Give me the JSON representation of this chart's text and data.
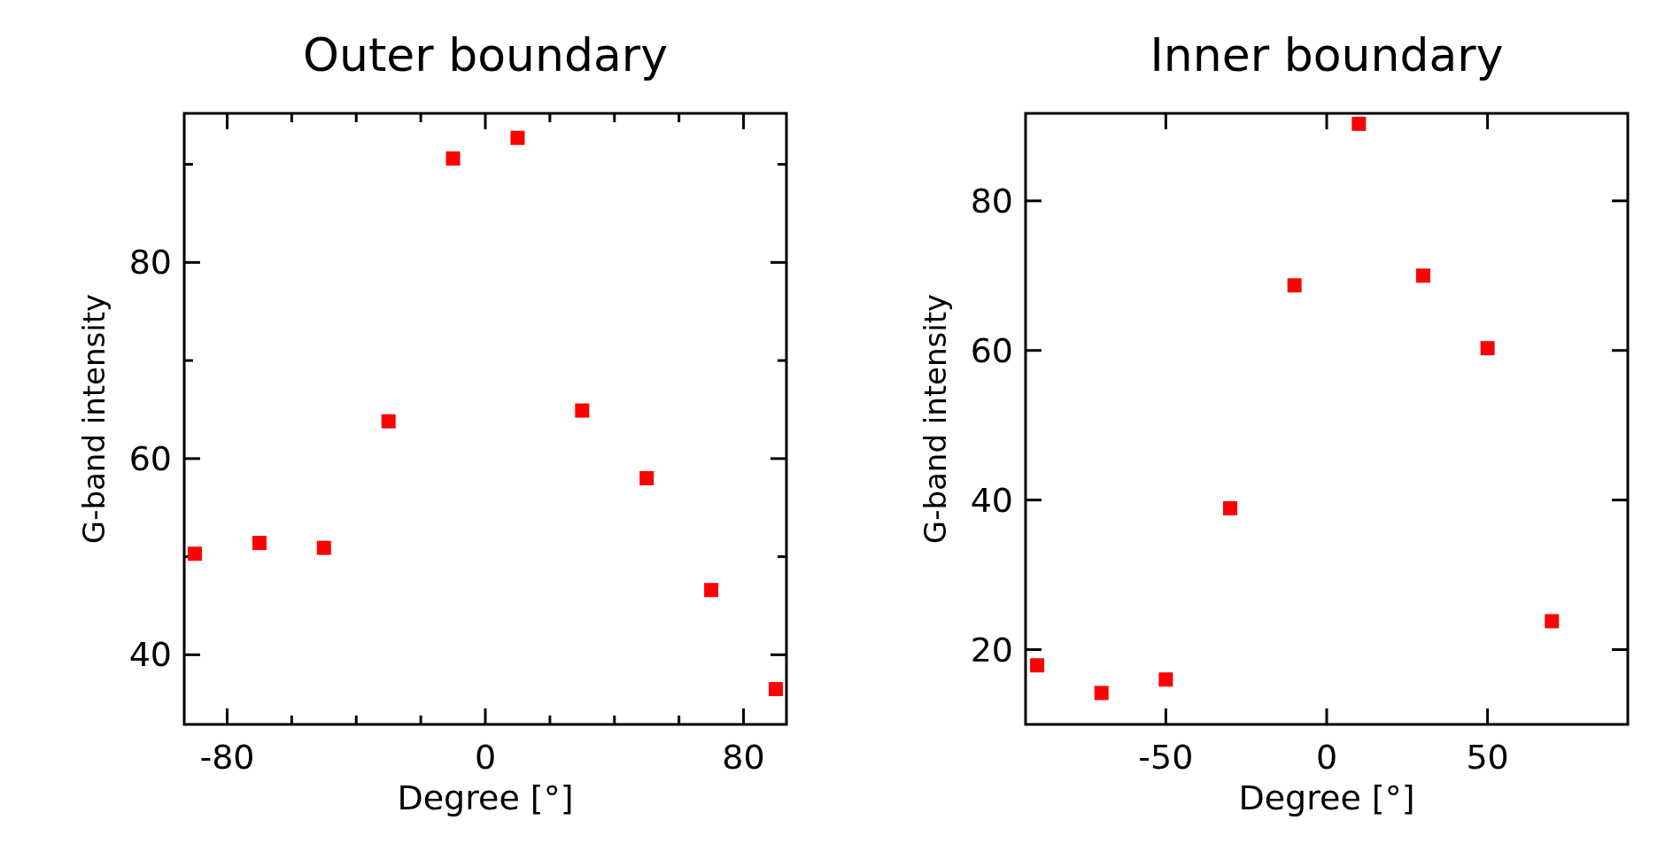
{
  "chart_data": [
    {
      "type": "scatter",
      "title": "Outer boundary",
      "xlabel": "Degree [°]",
      "ylabel": "G-band intensity",
      "marker": "square",
      "xlim": [
        -93.3,
        93.3
      ],
      "ylim": [
        32.9,
        95.2
      ],
      "xticks": [
        -80,
        {
          "value": -60,
          "label": null
        },
        {
          "value": -40,
          "label": null
        },
        {
          "value": -20,
          "label": null
        },
        0,
        {
          "value": 20,
          "label": null
        },
        {
          "value": 40,
          "label": null
        },
        {
          "value": 60,
          "label": null
        },
        80
      ],
      "yticks": [
        40,
        {
          "value": 50,
          "label": null
        },
        60,
        {
          "value": 70,
          "label": null
        },
        80,
        {
          "value": 90,
          "label": null
        }
      ],
      "series": [
        {
          "color": "#ff0000",
          "x": [
            -90,
            -70,
            -50,
            -30,
            -10,
            10,
            30,
            50,
            70,
            90
          ],
          "values": [
            50.3,
            51.4,
            50.9,
            63.8,
            90.6,
            92.7,
            64.9,
            58.0,
            46.6,
            36.5
          ]
        }
      ]
    },
    {
      "type": "scatter",
      "title": "Inner boundary",
      "xlabel": "Degree [°]",
      "ylabel": "G-band intensity",
      "marker": "square",
      "xlim": [
        -93.6,
        93.6
      ],
      "ylim": [
        10,
        91.7
      ],
      "xticks": [
        -50,
        0,
        50
      ],
      "yticks": [
        20,
        40,
        60,
        80
      ],
      "series": [
        {
          "color": "#ff0000",
          "x": [
            -90,
            -70,
            -50,
            -30,
            -10,
            10,
            30,
            50,
            70
          ],
          "values": [
            17.9,
            14.2,
            16.0,
            38.9,
            68.7,
            90.3,
            70.0,
            60.3,
            23.8
          ]
        }
      ]
    }
  ]
}
